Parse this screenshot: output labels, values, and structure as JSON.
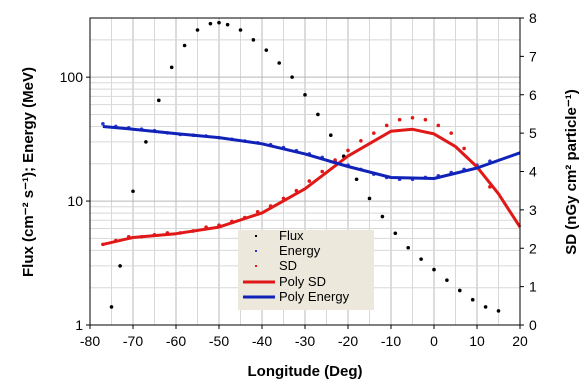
{
  "chart_data": {
    "type": "scatter",
    "title": "",
    "xlabel": "Longitude (Deg)",
    "ylabel_left": "Flux (cm⁻² s⁻¹); Energy (MeV)",
    "ylabel_right": "SD (nGy cm² particle⁻¹)",
    "xlim": [
      -80,
      20
    ],
    "ylim_left": [
      1,
      300
    ],
    "ylim_right": [
      0,
      8
    ],
    "left_log_scale": true,
    "grid": true,
    "legend_position": "bottom-center",
    "x_ticks": [
      "-80",
      "-70",
      "-60",
      "-50",
      "-40",
      "-30",
      "-20",
      "-10",
      "0",
      "10",
      "20"
    ],
    "y_left_ticks": [
      "1",
      "10",
      "100"
    ],
    "y_right_ticks": [
      "0",
      "1",
      "2",
      "3",
      "4",
      "5",
      "6",
      "7",
      "8"
    ],
    "colors": {
      "flux": "#000000",
      "energy": "#2a3ad0",
      "sd": "#e01818",
      "poly_sd": "#e01818",
      "poly_energy": "#1022b8",
      "legend_bg": "#ece8dc"
    },
    "series": [
      {
        "name": "Flux",
        "kind": "scatter",
        "axis": "left",
        "x": [
          -75,
          -73,
          -70,
          -67,
          -64,
          -61,
          -58,
          -55,
          -52,
          -50,
          -48,
          -45,
          -42,
          -39,
          -36,
          -33,
          -30,
          -27,
          -24,
          -21,
          -18,
          -15,
          -12,
          -9,
          -6,
          -3,
          0,
          3,
          6,
          9,
          12,
          15
        ],
        "y": [
          1.4,
          3,
          12,
          30,
          65,
          120,
          180,
          240,
          270,
          275,
          265,
          240,
          200,
          165,
          130,
          100,
          72,
          50,
          34,
          23,
          15,
          10.5,
          7.5,
          5.5,
          4.2,
          3.4,
          2.8,
          2.3,
          1.9,
          1.6,
          1.4,
          1.3
        ]
      },
      {
        "name": "Energy",
        "kind": "scatter",
        "axis": "left",
        "x": [
          -77,
          -74,
          -71,
          -68,
          -65,
          -62,
          -59,
          -56,
          -53,
          -50,
          -47,
          -44,
          -41,
          -38,
          -35,
          -32,
          -29,
          -26,
          -23,
          -20,
          -17,
          -14,
          -11,
          -8,
          -5,
          -2,
          1,
          4,
          7,
          10,
          13
        ],
        "y": [
          42,
          40,
          39,
          38,
          37,
          35.5,
          34.5,
          34,
          33.5,
          32.5,
          31.5,
          30.5,
          29.5,
          28.5,
          27,
          25.5,
          24,
          22.5,
          21,
          19.5,
          18,
          16.5,
          15.5,
          15,
          15,
          15.5,
          16,
          17,
          18,
          19.5,
          21
        ]
      },
      {
        "name": "SD",
        "kind": "scatter",
        "axis": "right",
        "x": [
          -77,
          -74,
          -71,
          -68,
          -65,
          -62,
          -59,
          -56,
          -53,
          -50,
          -47,
          -44,
          -41,
          -38,
          -35,
          -32,
          -29,
          -26,
          -23,
          -20,
          -17,
          -14,
          -11,
          -8,
          -5,
          -2,
          1,
          4,
          7,
          10,
          13
        ],
        "y": [
          2.1,
          2.2,
          2.3,
          2.3,
          2.35,
          2.4,
          2.4,
          2.45,
          2.55,
          2.6,
          2.7,
          2.8,
          2.95,
          3.1,
          3.3,
          3.5,
          3.75,
          4.0,
          4.3,
          4.55,
          4.8,
          5.0,
          5.2,
          5.35,
          5.4,
          5.35,
          5.2,
          5.0,
          4.6,
          4.1,
          3.6
        ]
      },
      {
        "name": "Poly SD",
        "kind": "line",
        "axis": "right",
        "x": [
          -77,
          -70,
          -60,
          -50,
          -40,
          -30,
          -20,
          -10,
          -5,
          0,
          5,
          10,
          15,
          20
        ],
        "y": [
          2.1,
          2.28,
          2.38,
          2.55,
          2.92,
          3.55,
          4.4,
          5.05,
          5.1,
          4.98,
          4.65,
          4.12,
          3.42,
          2.55
        ]
      },
      {
        "name": "Poly Energy",
        "kind": "line",
        "axis": "left",
        "x": [
          -77,
          -70,
          -60,
          -50,
          -40,
          -30,
          -20,
          -10,
          0,
          10,
          20
        ],
        "y": [
          40,
          38,
          35,
          32.5,
          29,
          24,
          19,
          15.5,
          15.2,
          18.5,
          24.5
        ]
      }
    ]
  }
}
